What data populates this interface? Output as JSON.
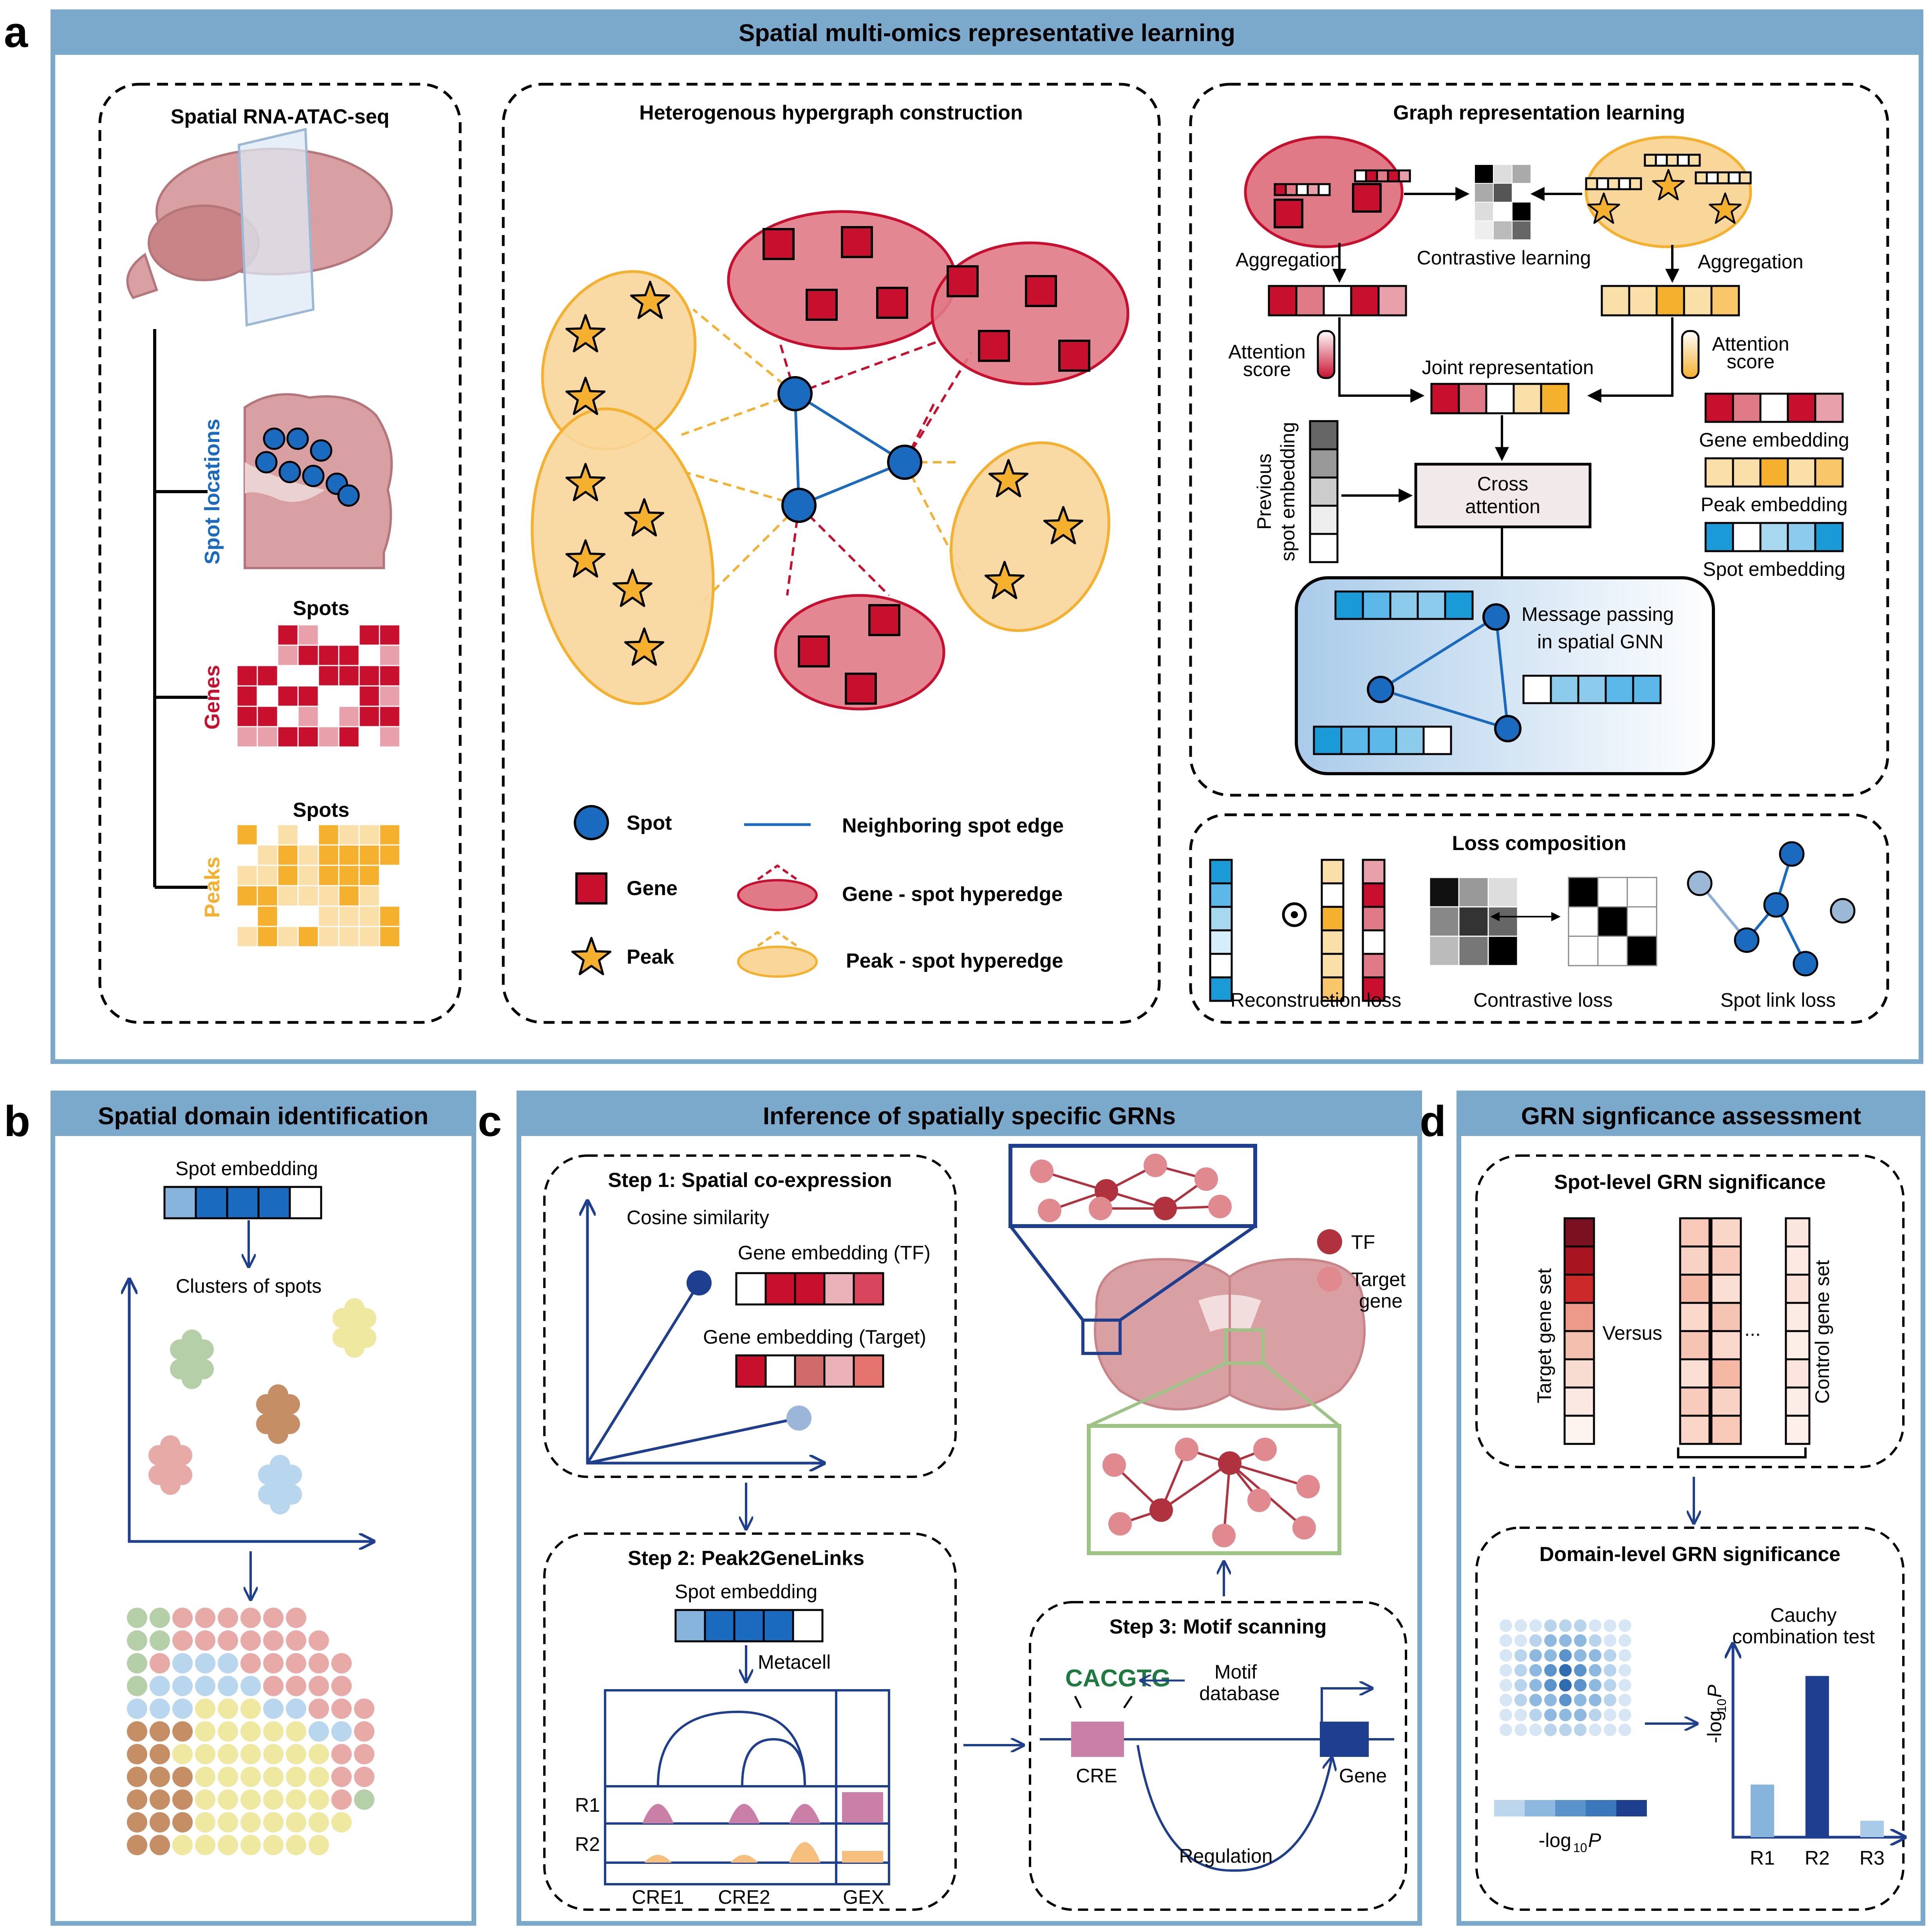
{
  "panels": {
    "a": {
      "letter": "a",
      "title": "Spatial multi-omics representative learning",
      "rnaatac": {
        "title": "Spatial RNA-ATAC-seq",
        "spot_locations": "Spot locations",
        "genes": "Genes",
        "peaks": "Peaks",
        "spots1": "Spots",
        "spots2": "Spots"
      },
      "hypergraph": {
        "title": "Heterogenous hypergraph construction",
        "legend": {
          "spot": "Spot",
          "gene": "Gene",
          "peak": "Peak",
          "edge": "Neighboring spot edge",
          "gene_hyper": "Gene - spot hyperedge",
          "peak_hyper": "Peak - spot hyperedge"
        }
      },
      "grl": {
        "title": "Graph representation learning",
        "aggregation_left": "Aggregation",
        "aggregation_right": "Aggregation",
        "contrastive": "Contrastive learning",
        "attention_score_left_1": "Attention",
        "attention_score_left_2": "score",
        "attention_score_right_1": "Attention",
        "attention_score_right_2": "score",
        "joint": "Joint representation",
        "prev_1": "Previous",
        "prev_2": "spot embedding",
        "cross_1": "Cross",
        "cross_2": "attention",
        "gene_emb": "Gene embedding",
        "peak_emb": "Peak embedding",
        "spot_emb": "Spot embedding",
        "mp_1": "Message passing",
        "mp_2": "in spatial GNN"
      },
      "loss": {
        "title": "Loss composition",
        "recon": "Reconstruction loss",
        "contrast": "Contrastive loss",
        "link": "Spot link loss"
      }
    },
    "b": {
      "letter": "b",
      "title": "Spatial domain identification",
      "spot_embedding": "Spot embedding",
      "clusters": "Clusters of spots"
    },
    "c": {
      "letter": "c",
      "title": "Inference of spatially specific GRNs",
      "step1": "Step 1: Spatial co-expression",
      "cosine": "Cosine similarity",
      "gene_tf": "Gene embedding (TF)",
      "gene_target": "Gene embedding (Target)",
      "step2": "Step 2: Peak2GeneLinks",
      "spot_embedding": "Spot embedding",
      "metacell": "Metacell",
      "r1": "R1",
      "r2": "R2",
      "cre1": "CRE1",
      "cre2": "CRE2",
      "gex": "GEX",
      "step3": "Step 3: Motif scanning",
      "motif_seq": "CACGTG",
      "motif_1": "Motif",
      "motif_2": "database",
      "cre": "CRE",
      "gene": "Gene",
      "regulation": "Regulation",
      "tf": "TF",
      "target_1": "Target",
      "target_2": "gene"
    },
    "d": {
      "letter": "d",
      "title": "GRN signficance assessment",
      "spot_level": "Spot-level GRN significance",
      "target_set": "Target gene set",
      "versus": "Versus",
      "dots": "...",
      "control_set": "Control gene set",
      "domain_level": "Domain-level GRN significance",
      "cauchy_1": "Cauchy",
      "cauchy_2": "combination test",
      "neglog": "-log",
      "sub10": "10",
      "p": "P",
      "bars": [
        {
          "label": "R1",
          "value": 1.6
        },
        {
          "label": "R2",
          "value": 4.9
        },
        {
          "label": "R3",
          "value": 0.5
        }
      ]
    }
  },
  "colors": {
    "frame": "#7ba9cc",
    "title_bar": "#7ba9cc",
    "gene": "#c8102e",
    "gene_light": "#e07a86",
    "peak": "#f5b02e",
    "peak_light": "#f9d69a",
    "spot": "#1a6bbf",
    "navy": "#1e3f8f"
  }
}
